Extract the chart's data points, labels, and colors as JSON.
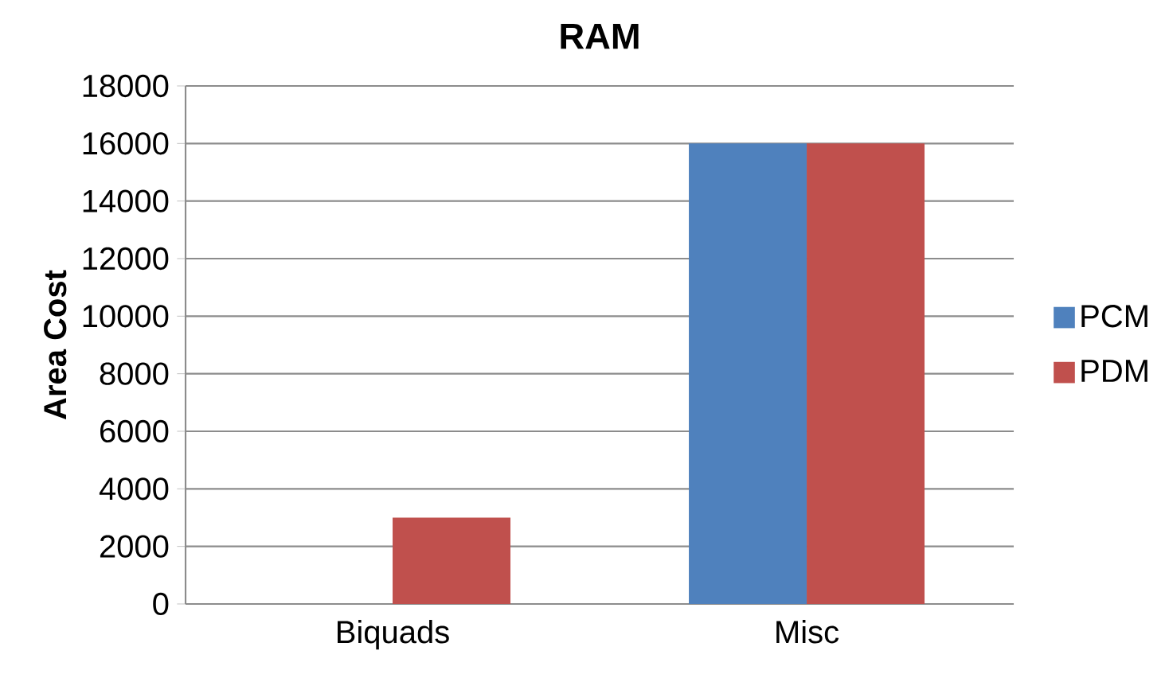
{
  "chart_data": {
    "type": "bar",
    "title": "RAM",
    "ylabel": "Area Cost",
    "categories": [
      "Biquads",
      "Misc"
    ],
    "series": [
      {
        "name": "PCM",
        "color": "#4f81bd",
        "values": [
          0,
          16000
        ]
      },
      {
        "name": "PDM",
        "color": "#c0504d",
        "values": [
          3000,
          16000
        ]
      }
    ],
    "ylim": [
      0,
      18000
    ],
    "yticks": [
      0,
      2000,
      4000,
      6000,
      8000,
      10000,
      12000,
      14000,
      16000,
      18000
    ],
    "grid": "y",
    "legend": "right"
  }
}
